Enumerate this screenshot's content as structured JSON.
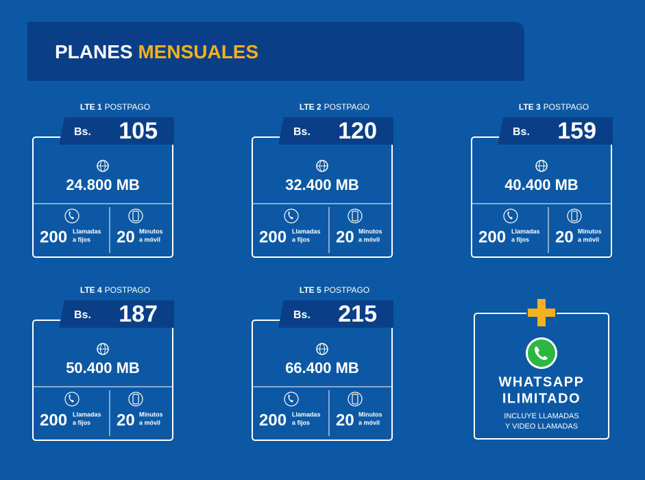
{
  "header": {
    "title_part1": "PLANES",
    "title_part2": "MENSUALES"
  },
  "plans": [
    {
      "name": "LTE 1",
      "type": "POSTPAGO",
      "currency": "Bs.",
      "price": "105",
      "data": "24.800 MB",
      "calls": "200",
      "calls_label_1": "Llamadas",
      "calls_label_2": "a fijos",
      "minutes": "20",
      "minutes_label_1": "Minutos",
      "minutes_label_2": "a móvil"
    },
    {
      "name": "LTE 2",
      "type": "POSTPAGO",
      "currency": "Bs.",
      "price": "120",
      "data": "32.400 MB",
      "calls": "200",
      "calls_label_1": "Llamadas",
      "calls_label_2": "a fijos",
      "minutes": "20",
      "minutes_label_1": "Minutos",
      "minutes_label_2": "a móvil"
    },
    {
      "name": "LTE 3",
      "type": "POSTPAGO",
      "currency": "Bs.",
      "price": "159",
      "data": "40.400 MB",
      "calls": "200",
      "calls_label_1": "Llamadas",
      "calls_label_2": "a fijos",
      "minutes": "20",
      "minutes_label_1": "Minutos",
      "minutes_label_2": "a móvil"
    },
    {
      "name": "LTE 4",
      "type": "POSTPAGO",
      "currency": "Bs.",
      "price": "187",
      "data": "50.400 MB",
      "calls": "200",
      "calls_label_1": "Llamadas",
      "calls_label_2": "a fijos",
      "minutes": "20",
      "minutes_label_1": "Minutos",
      "minutes_label_2": "a móvil"
    },
    {
      "name": "LTE 5",
      "type": "POSTPAGO",
      "currency": "Bs.",
      "price": "215",
      "data": "66.400 MB",
      "calls": "200",
      "calls_label_1": "Llamadas",
      "calls_label_2": "a fijos",
      "minutes": "20",
      "minutes_label_1": "Minutos",
      "minutes_label_2": "a móvil"
    }
  ],
  "whatsapp": {
    "title_1": "WHATSAPP",
    "title_2": "ILIMITADO",
    "note_1": "INCLUYE LLAMADAS",
    "note_2": "Y VIDEO LLAMADAS"
  }
}
